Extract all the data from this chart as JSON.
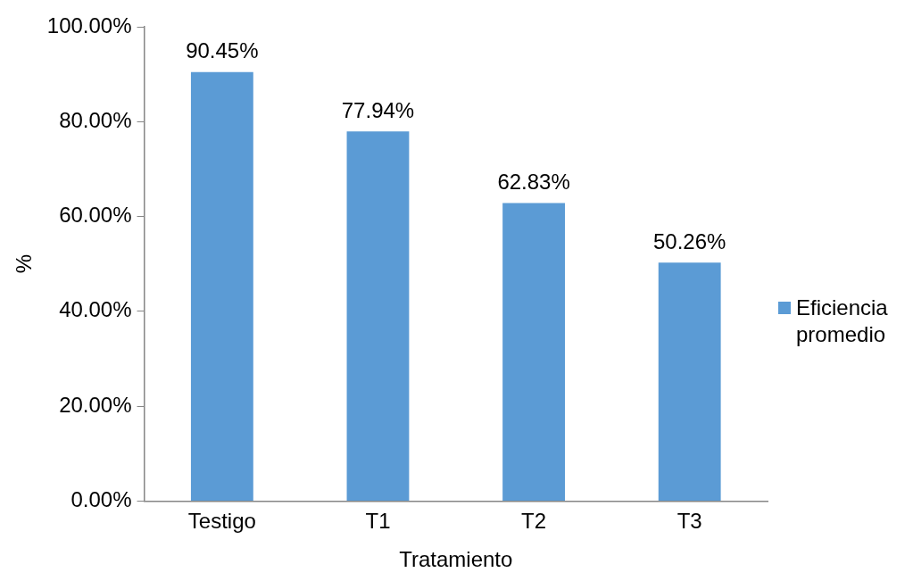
{
  "chart_data": {
    "type": "bar",
    "xlabel": "Tratamiento",
    "ylabel": "%",
    "categories": [
      "Testigo",
      "T1",
      "T2",
      "T3"
    ],
    "series": [
      {
        "name": "Eficiencia promedio",
        "color": "#5b9bd5",
        "values": [
          90.45,
          77.94,
          62.83,
          50.26
        ],
        "value_labels": [
          "90.45%",
          "77.94%",
          "62.83%",
          "50.26%"
        ]
      }
    ],
    "ylim": [
      0,
      100
    ],
    "yticks": [
      {
        "value": 0,
        "label": "0.00%"
      },
      {
        "value": 20,
        "label": "20.00%"
      },
      {
        "value": 40,
        "label": "40.00%"
      },
      {
        "value": 60,
        "label": "60.00%"
      },
      {
        "value": 80,
        "label": "80.00%"
      },
      {
        "value": 100,
        "label": "100.00%"
      }
    ],
    "grid": false,
    "legend": "right"
  }
}
